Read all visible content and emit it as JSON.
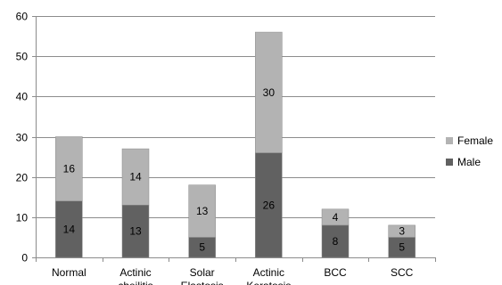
{
  "chart_data": {
    "type": "bar",
    "stacked": true,
    "categories": [
      "Normal",
      "Actinic cheilitis",
      "Solar Elastosis",
      "Actinic Keratosis",
      "BCC",
      "SCC"
    ],
    "series": [
      {
        "name": "Male",
        "values": [
          14,
          13,
          5,
          26,
          8,
          5
        ],
        "color": "#616161"
      },
      {
        "name": "Female",
        "values": [
          16,
          14,
          13,
          30,
          4,
          3
        ],
        "color": "#b3b3b3"
      }
    ],
    "title": "",
    "xlabel": "",
    "ylabel": "",
    "ylim": [
      0,
      60
    ],
    "yticks": [
      0,
      10,
      20,
      30,
      40,
      50,
      60
    ],
    "grid": true,
    "legend": "right",
    "legend_order": [
      "Female",
      "Male"
    ]
  }
}
